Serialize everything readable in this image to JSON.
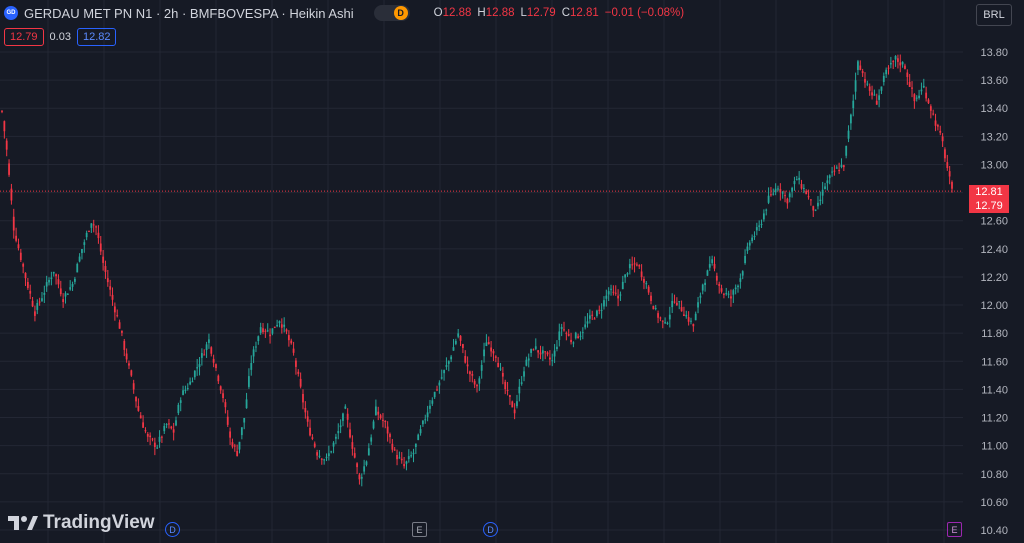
{
  "header": {
    "logo_text": "GD",
    "title": "GERDAU MET PN N1 · 2h · BMFBOVESPA · Heikin Ashi",
    "toggle_letter": "D",
    "ohlc": {
      "o_label": "O",
      "o_value": "12.88",
      "h_label": "H",
      "h_value": "12.88",
      "l_label": "L",
      "l_value": "12.79",
      "c_label": "C",
      "c_value": "12.81",
      "change": "−0.01 (−0.08%)"
    }
  },
  "quote": {
    "bid": "12.79",
    "spread": "0.03",
    "ask": "12.82"
  },
  "currency": "BRL",
  "branding": {
    "name": "TradingView"
  },
  "events": [
    {
      "type": "dividend",
      "letter": "D"
    },
    {
      "type": "earnings",
      "letter": "E"
    },
    {
      "type": "dividend",
      "letter": "D"
    },
    {
      "type": "earnings-future",
      "letter": "E"
    }
  ],
  "price_tags": {
    "last": "12.81",
    "bid": "12.79"
  },
  "colors": {
    "background": "#161a25",
    "up": "#26a69a",
    "down": "#f23645",
    "grid": "#232734",
    "accent": "#2962ff"
  },
  "chart_data": {
    "type": "candlestick",
    "style": "Heikin Ashi",
    "symbol": "GERDAU MET PN N1",
    "interval": "2h",
    "exchange": "BMFBOVESPA",
    "y_axis": {
      "ticks": [
        13.8,
        13.6,
        13.4,
        13.2,
        13.0,
        12.8,
        12.6,
        12.4,
        12.2,
        12.0,
        11.8,
        11.6,
        11.4,
        11.2,
        11.0,
        10.8,
        10.6,
        10.4
      ],
      "range": [
        10.4,
        13.8
      ]
    },
    "last_price_line": 12.81,
    "grid": true,
    "legend": "none",
    "path_keypoints": [
      [
        0,
        13.38
      ],
      [
        2,
        13.1
      ],
      [
        5,
        12.55
      ],
      [
        10,
        12.2
      ],
      [
        14,
        11.95
      ],
      [
        18,
        12.1
      ],
      [
        22,
        12.25
      ],
      [
        26,
        12.05
      ],
      [
        30,
        12.15
      ],
      [
        34,
        12.4
      ],
      [
        38,
        12.6
      ],
      [
        40,
        12.55
      ],
      [
        43,
        12.3
      ],
      [
        46,
        12.1
      ],
      [
        50,
        11.85
      ],
      [
        54,
        11.55
      ],
      [
        58,
        11.25
      ],
      [
        62,
        11.05
      ],
      [
        66,
        11.0
      ],
      [
        70,
        11.15
      ],
      [
        73,
        11.1
      ],
      [
        76,
        11.35
      ],
      [
        80,
        11.45
      ],
      [
        84,
        11.6
      ],
      [
        88,
        11.75
      ],
      [
        91,
        11.55
      ],
      [
        94,
        11.35
      ],
      [
        97,
        11.05
      ],
      [
        100,
        10.95
      ],
      [
        103,
        11.2
      ],
      [
        106,
        11.6
      ],
      [
        110,
        11.85
      ],
      [
        114,
        11.8
      ],
      [
        118,
        11.9
      ],
      [
        121,
        11.8
      ],
      [
        124,
        11.65
      ],
      [
        127,
        11.4
      ],
      [
        130,
        11.15
      ],
      [
        134,
        10.95
      ],
      [
        138,
        10.9
      ],
      [
        142,
        11.05
      ],
      [
        146,
        11.25
      ],
      [
        149,
        11.0
      ],
      [
        152,
        10.75
      ],
      [
        155,
        10.9
      ],
      [
        159,
        11.25
      ],
      [
        163,
        11.15
      ],
      [
        167,
        10.95
      ],
      [
        171,
        10.85
      ],
      [
        175,
        10.95
      ],
      [
        178,
        11.1
      ],
      [
        182,
        11.3
      ],
      [
        186,
        11.45
      ],
      [
        190,
        11.6
      ],
      [
        194,
        11.8
      ],
      [
        198,
        11.55
      ],
      [
        202,
        11.4
      ],
      [
        206,
        11.75
      ],
      [
        210,
        11.65
      ],
      [
        214,
        11.4
      ],
      [
        218,
        11.25
      ],
      [
        222,
        11.55
      ],
      [
        226,
        11.7
      ],
      [
        230,
        11.65
      ],
      [
        234,
        11.6
      ],
      [
        238,
        11.85
      ],
      [
        242,
        11.75
      ],
      [
        246,
        11.8
      ],
      [
        250,
        11.9
      ],
      [
        254,
        11.95
      ],
      [
        258,
        12.1
      ],
      [
        262,
        12.05
      ],
      [
        266,
        12.25
      ],
      [
        270,
        12.3
      ],
      [
        274,
        12.15
      ],
      [
        278,
        11.95
      ],
      [
        282,
        11.85
      ],
      [
        286,
        12.05
      ],
      [
        290,
        11.95
      ],
      [
        294,
        11.85
      ],
      [
        298,
        12.15
      ],
      [
        302,
        12.3
      ],
      [
        306,
        12.1
      ],
      [
        310,
        12.05
      ],
      [
        314,
        12.2
      ],
      [
        318,
        12.45
      ],
      [
        322,
        12.55
      ],
      [
        326,
        12.75
      ],
      [
        330,
        12.85
      ],
      [
        334,
        12.75
      ],
      [
        338,
        12.9
      ],
      [
        342,
        12.8
      ],
      [
        346,
        12.65
      ],
      [
        350,
        12.85
      ],
      [
        354,
        12.95
      ],
      [
        358,
        13.0
      ],
      [
        362,
        13.45
      ],
      [
        364,
        13.75
      ],
      [
        368,
        13.55
      ],
      [
        372,
        13.45
      ],
      [
        376,
        13.65
      ],
      [
        380,
        13.75
      ],
      [
        384,
        13.7
      ],
      [
        388,
        13.45
      ],
      [
        392,
        13.55
      ],
      [
        396,
        13.35
      ],
      [
        400,
        13.15
      ],
      [
        404,
        12.8
      ]
    ]
  }
}
